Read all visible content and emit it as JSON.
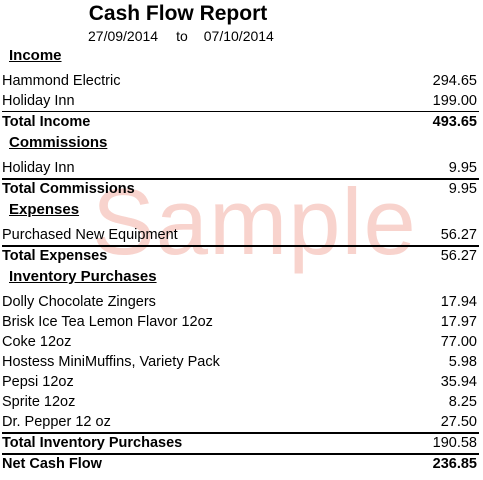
{
  "report": {
    "title": "Cash Flow Report",
    "start_date": "27/09/2014",
    "to_word": "to",
    "end_date": "07/10/2014",
    "watermark": "Sample"
  },
  "sections": {
    "income": {
      "heading": "Income",
      "items": [
        {
          "label": "Hammond Electric",
          "value": "294.65"
        },
        {
          "label": "Holiday Inn",
          "value": "199.00"
        }
      ],
      "total_label": "Total Income",
      "total_value": "493.65"
    },
    "commissions": {
      "heading": "Commissions",
      "items": [
        {
          "label": "Holiday Inn",
          "value": "9.95"
        }
      ],
      "total_label": "Total Commissions",
      "total_value": "9.95"
    },
    "expenses": {
      "heading": "Expenses",
      "items": [
        {
          "label": "Purchased New Equipment",
          "value": "56.27"
        }
      ],
      "total_label": "Total Expenses",
      "total_value": "56.27"
    },
    "inventory": {
      "heading": "Inventory Purchases",
      "items": [
        {
          "label": "Dolly Chocolate Zingers",
          "value": "17.94"
        },
        {
          "label": "Brisk Ice Tea Lemon Flavor 12oz",
          "value": "17.97"
        },
        {
          "label": "Coke 12oz",
          "value": "77.00"
        },
        {
          "label": "Hostess MiniMuffins, Variety Pack",
          "value": "5.98"
        },
        {
          "label": "Pepsi 12oz",
          "value": "35.94"
        },
        {
          "label": "Sprite 12oz",
          "value": "8.25"
        },
        {
          "label": "Dr. Pepper 12 oz",
          "value": "27.50"
        }
      ],
      "total_label": "Total Inventory Purchases",
      "total_value": "190.58"
    }
  },
  "net": {
    "label": "Net Cash Flow",
    "value": "236.85"
  }
}
